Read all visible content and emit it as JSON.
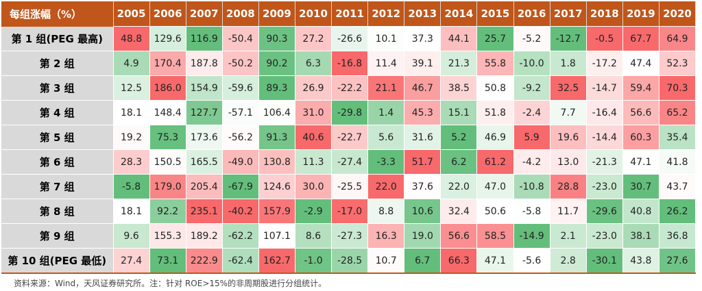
{
  "chart_data": {
    "type": "heatmap",
    "corner_label": "每组涨幅（%）",
    "columns": [
      "2005",
      "2006",
      "2007",
      "2008",
      "2009",
      "2010",
      "2011",
      "2012",
      "2013",
      "2014",
      "2015",
      "2016",
      "2017",
      "2018",
      "2019",
      "2020"
    ],
    "rows": [
      {
        "label": "第 1 组(PEG 最高)",
        "values": [
          48.8,
          129.6,
          116.9,
          -50.4,
          90.3,
          27.2,
          -26.6,
          10.1,
          37.3,
          44.1,
          25.7,
          -5.2,
          -12.7,
          -0.5,
          67.7,
          64.9
        ]
      },
      {
        "label": "第 2 组",
        "values": [
          4.9,
          170.4,
          187.8,
          -50.2,
          90.2,
          6.3,
          -16.8,
          11.4,
          39.1,
          21.3,
          55.8,
          -10.0,
          1.8,
          -17.2,
          47.4,
          52.3
        ]
      },
      {
        "label": "第 3 组",
        "values": [
          12.5,
          186.0,
          154.9,
          -59.6,
          89.3,
          26.9,
          -22.2,
          21.1,
          46.7,
          38.5,
          50.8,
          -9.2,
          32.5,
          -14.7,
          59.4,
          70.3
        ]
      },
      {
        "label": "第 4 组",
        "values": [
          18.1,
          148.4,
          127.7,
          -57.1,
          106.4,
          31.0,
          -29.8,
          1.4,
          45.3,
          15.1,
          51.8,
          -2.4,
          7.7,
          -16.4,
          56.6,
          65.2
        ]
      },
      {
        "label": "第 5 组",
        "values": [
          19.2,
          75.3,
          173.6,
          -56.2,
          91.3,
          40.6,
          -22.7,
          5.6,
          31.6,
          5.2,
          46.9,
          5.9,
          19.6,
          -14.4,
          60.3,
          35.4
        ]
      },
      {
        "label": "第 6 组",
        "values": [
          28.3,
          150.5,
          165.5,
          -49.0,
          130.8,
          11.3,
          -27.4,
          -3.3,
          51.7,
          6.2,
          61.2,
          -4.2,
          13.0,
          -21.3,
          47.1,
          41.8
        ]
      },
      {
        "label": "第 7 组",
        "values": [
          -5.8,
          179.0,
          205.4,
          -67.9,
          124.6,
          30.0,
          -25.5,
          22.0,
          37.6,
          22.0,
          47.0,
          -10.8,
          28.8,
          -23.0,
          30.7,
          43.7
        ]
      },
      {
        "label": "第 8 组",
        "values": [
          18.1,
          92.2,
          235.1,
          -40.2,
          157.9,
          -2.9,
          -17.0,
          8.8,
          10.6,
          32.4,
          50.6,
          -5.8,
          11.7,
          -29.6,
          40.8,
          26.2
        ]
      },
      {
        "label": "第 9 组",
        "values": [
          9.6,
          155.3,
          189.2,
          -62.2,
          107.1,
          8.6,
          -27.3,
          16.3,
          19.0,
          56.6,
          58.5,
          -14.9,
          2.1,
          -23.0,
          38.1,
          36.8
        ]
      },
      {
        "label": "第 10 组(PEG 最低)",
        "values": [
          27.4,
          73.1,
          222.9,
          -62.4,
          162.7,
          -1.0,
          -28.5,
          10.7,
          6.7,
          66.3,
          47.1,
          -5.6,
          2.8,
          -30.1,
          43.8,
          27.6
        ]
      }
    ],
    "color_scale": {
      "high": "#f8696b",
      "mid": "#ffffff",
      "low": "#63be7b"
    }
  },
  "source_note": "资料来源：Wind，天风证券研究所。注：针对 ROE>15%的非周期股进行分组统计。",
  "colors": {
    "header_bg": "#c0561a",
    "row_label_bg": "#d9d9d9"
  }
}
